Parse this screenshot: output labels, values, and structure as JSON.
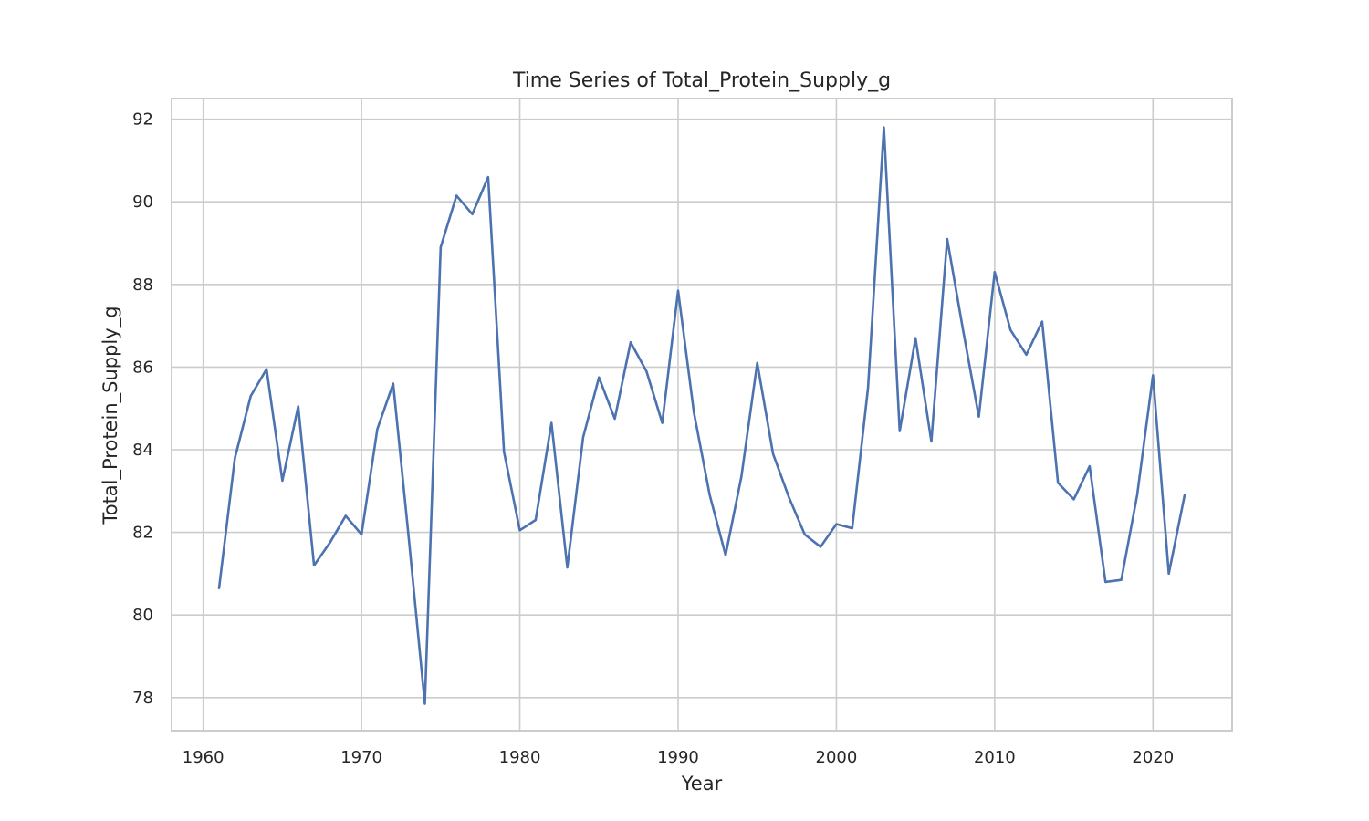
{
  "chart_data": {
    "type": "line",
    "title": "Time Series of Total_Protein_Supply_g",
    "xlabel": "Year",
    "ylabel": "Total_Protein_Supply_g",
    "xlim": [
      1958,
      2025
    ],
    "ylim": [
      77.2,
      92.5
    ],
    "xticks": [
      1960,
      1970,
      1980,
      1990,
      2000,
      2010,
      2020
    ],
    "yticks": [
      78,
      80,
      82,
      84,
      86,
      88,
      90,
      92
    ],
    "grid": true,
    "series": [
      {
        "color": "#4c72b0",
        "x": [
          1961,
          1962,
          1963,
          1964,
          1965,
          1966,
          1967,
          1968,
          1969,
          1970,
          1971,
          1972,
          1973,
          1974,
          1975,
          1976,
          1977,
          1978,
          1979,
          1980,
          1981,
          1982,
          1983,
          1984,
          1985,
          1986,
          1987,
          1988,
          1989,
          1990,
          1991,
          1992,
          1993,
          1994,
          1995,
          1996,
          1997,
          1998,
          1999,
          2000,
          2001,
          2002,
          2003,
          2004,
          2005,
          2006,
          2007,
          2008,
          2009,
          2010,
          2011,
          2012,
          2013,
          2014,
          2015,
          2016,
          2017,
          2018,
          2019,
          2020,
          2021,
          2022
        ],
        "y": [
          80.65,
          83.8,
          85.3,
          85.95,
          83.25,
          85.05,
          81.2,
          81.75,
          82.4,
          81.95,
          84.5,
          85.6,
          81.8,
          77.85,
          88.9,
          90.15,
          89.7,
          90.6,
          83.95,
          82.05,
          82.3,
          84.65,
          81.15,
          84.3,
          85.75,
          84.75,
          86.6,
          85.9,
          84.65,
          87.85,
          84.9,
          82.9,
          81.45,
          83.35,
          86.1,
          83.9,
          82.85,
          81.95,
          81.65,
          82.2,
          82.1,
          85.5,
          91.8,
          84.45,
          86.7,
          84.2,
          89.1,
          86.9,
          84.8,
          88.3,
          86.9,
          86.3,
          87.1,
          83.2,
          82.8,
          83.6,
          80.8,
          80.85,
          82.9,
          85.8,
          81.0,
          82.9
        ]
      }
    ]
  }
}
